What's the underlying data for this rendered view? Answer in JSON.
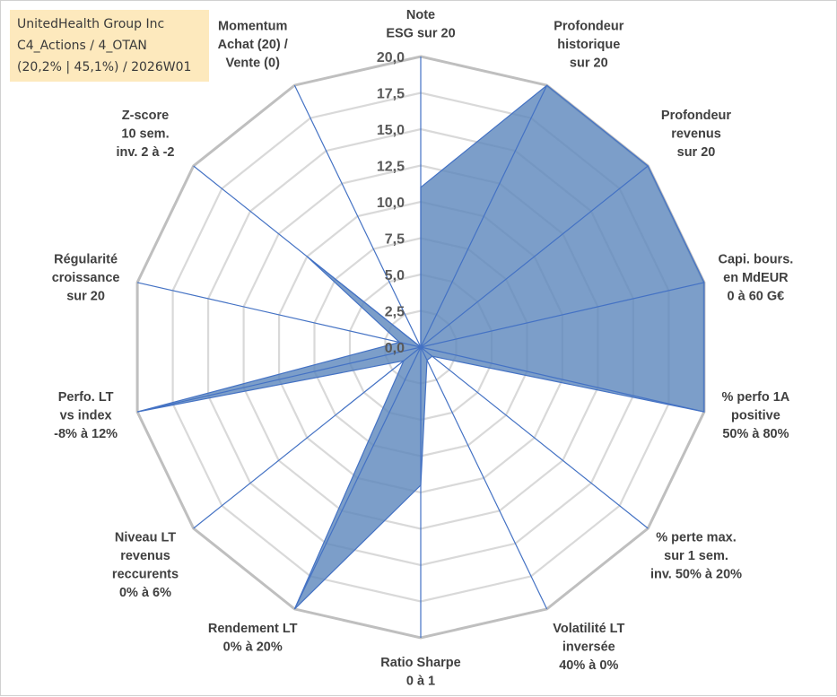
{
  "chart_data": {
    "type": "radar",
    "title": "",
    "legend_lines": [
      "UnitedHealth Group Inc",
      "C4_Actions / 4_OTAN",
      "(20,2% | 45,1%) / 2026W01"
    ],
    "axis_range": [
      0,
      20
    ],
    "tick_labels": [
      "0,0",
      "2,5",
      "5,0",
      "7,5",
      "10,0",
      "12,5",
      "15,0",
      "17,5",
      "20,0"
    ],
    "categories": [
      [
        "Note",
        "ESG sur 20"
      ],
      [
        "Profondeur",
        "historique",
        "sur 20"
      ],
      [
        "Profondeur",
        "revenus",
        "sur 20"
      ],
      [
        "Capi. bours.",
        "en MdEUR",
        "0 à 60 G€"
      ],
      [
        "% perfo 1A",
        "positive",
        "50% à 80%"
      ],
      [
        "% perte max.",
        "sur 1 sem.",
        "inv. 50% à 20%"
      ],
      [
        "Volatilité LT",
        "inversée",
        "40% à 0%"
      ],
      [
        "Ratio Sharpe",
        "0 à 1"
      ],
      [
        "Rendement LT",
        "0% à 20%"
      ],
      [
        "Niveau LT",
        "revenus",
        "reccurents",
        "0% à 6%"
      ],
      [
        "Perfo. LT",
        "vs index",
        "-8% à 12%"
      ],
      [
        "Régularité",
        "croissance",
        "sur 20"
      ],
      [
        "Z-score",
        "10 sem.",
        "inv. 2 à -2"
      ],
      [
        "Momentum",
        "Achat (20) /",
        "Vente (0)"
      ]
    ],
    "series": [
      {
        "name": "UnitedHealth Group Inc",
        "values": [
          11.0,
          20.0,
          20.0,
          20.0,
          20.0,
          1.0,
          1.0,
          9.5,
          20.0,
          1.5,
          20.0,
          1.5,
          10.0,
          0.0
        ]
      }
    ],
    "colors": {
      "fill": "#5b86bb",
      "fill_opacity": "0.80",
      "series_line": "#4472c4",
      "spoke": "#4472c4",
      "grid": "#d9d9d9",
      "outer_ring": "#bfbfbf",
      "text": "#404040",
      "legend_bg": "#fde9bd"
    }
  }
}
